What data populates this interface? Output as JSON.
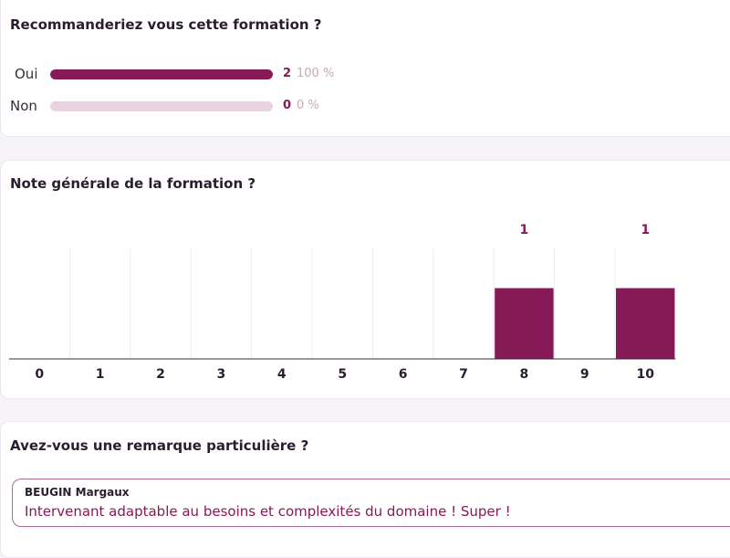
{
  "recommend": {
    "title": "Recommanderiez vous cette formation ?",
    "options": [
      {
        "label": "Oui",
        "count": "2",
        "percent": "100 %",
        "fraction": 1.0
      },
      {
        "label": "Non",
        "count": "0",
        "percent": "0 %",
        "fraction": 0.0
      }
    ]
  },
  "rating": {
    "title": "Note générale de la formation ?"
  },
  "chart_data": {
    "type": "bar",
    "categories": [
      "0",
      "1",
      "2",
      "3",
      "4",
      "5",
      "6",
      "7",
      "8",
      "9",
      "10"
    ],
    "values": [
      0,
      0,
      0,
      0,
      0,
      0,
      0,
      0,
      1,
      0,
      1
    ],
    "data_labels": [
      "",
      "",
      "",
      "",
      "",
      "",
      "",
      "",
      "1",
      "",
      "1"
    ],
    "title": "Note générale de la formation ?",
    "xlabel": "",
    "ylabel": "",
    "ylim": [
      0,
      2
    ],
    "bar_color": "#861a59",
    "grid": "vertical"
  },
  "remark": {
    "title": "Avez-vous une remarque particulière ?",
    "author": "BEUGIN Margaux",
    "text": "Intervenant adaptable au besoins et complexités du domaine ! Super !"
  },
  "colors": {
    "accent": "#861a59",
    "track": "#ead3e1",
    "muted_text": "#c9a6bd"
  }
}
